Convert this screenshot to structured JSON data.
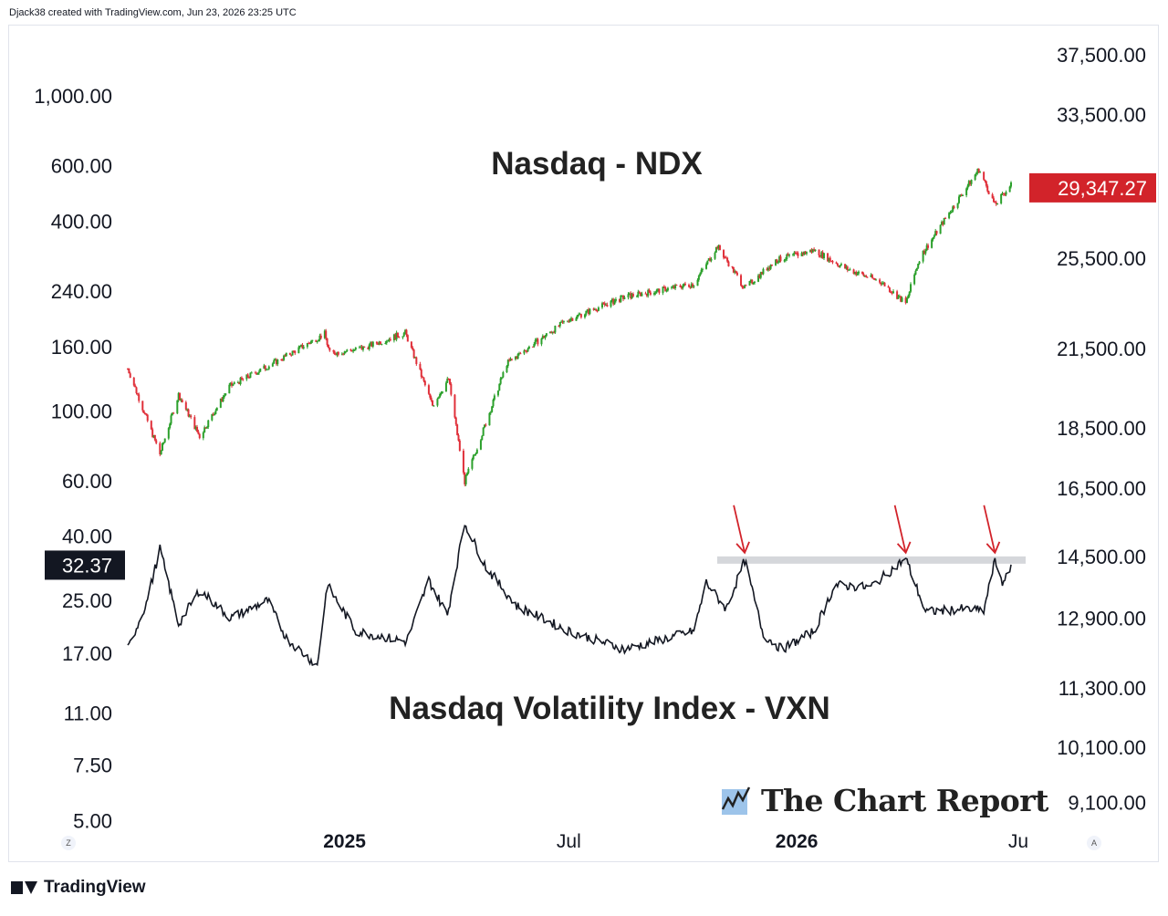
{
  "header": {
    "created_text": "Djack38 created with TradingView.com, Jun 23, 2026 23:25 UTC"
  },
  "footer": {
    "logo_text": "TradingView"
  },
  "watermark": {
    "text": "The Chart Report"
  },
  "controls": {
    "left_scale_button": "Z",
    "right_scale_button": "A"
  },
  "colors": {
    "up": "#2ca02c",
    "down": "#e0303a",
    "vxn_line": "#131722",
    "price_badge": "#d2232a",
    "resistance": "#d5d7db",
    "arrows": "#d2232a"
  },
  "chart_data": [
    {
      "type": "candlestick",
      "title": "Nasdaq - NDX",
      "axis": "right",
      "log_scale": true,
      "ylim": [
        8600,
        39500
      ],
      "y_ticks": [
        "37,500.00",
        "33,500.00",
        "25,500.00",
        "21,500.00",
        "18,500.00",
        "16,500.00",
        "14,500.00",
        "12,900.00",
        "11,300.00",
        "10,100.00",
        "9,100.00"
      ],
      "last_value_label": "29,347.27",
      "x_ticks": [
        "2025",
        "Jul",
        "2026",
        "Ju"
      ],
      "approx_path": [
        {
          "date": "2024-07-10",
          "close": 20700
        },
        {
          "date": "2024-08-05",
          "close": 17600
        },
        {
          "date": "2024-08-20",
          "close": 19700
        },
        {
          "date": "2024-09-06",
          "close": 18200
        },
        {
          "date": "2024-09-30",
          "close": 20000
        },
        {
          "date": "2024-11-08",
          "close": 21000
        },
        {
          "date": "2024-12-16",
          "close": 22100
        },
        {
          "date": "2024-12-20",
          "close": 21300
        },
        {
          "date": "2025-01-15",
          "close": 21500
        },
        {
          "date": "2025-02-19",
          "close": 22150
        },
        {
          "date": "2025-03-13",
          "close": 19300
        },
        {
          "date": "2025-03-26",
          "close": 20300
        },
        {
          "date": "2025-04-08",
          "close": 16700
        },
        {
          "date": "2025-04-22",
          "close": 18300
        },
        {
          "date": "2025-05-12",
          "close": 20900
        },
        {
          "date": "2025-06-30",
          "close": 22700
        },
        {
          "date": "2025-08-15",
          "close": 23700
        },
        {
          "date": "2025-10-10",
          "close": 24300
        },
        {
          "date": "2025-10-29",
          "close": 26100
        },
        {
          "date": "2025-11-20",
          "close": 24100
        },
        {
          "date": "2025-12-15",
          "close": 25400
        },
        {
          "date": "2026-01-15",
          "close": 25900
        },
        {
          "date": "2026-02-10",
          "close": 25000
        },
        {
          "date": "2026-03-10",
          "close": 24400
        },
        {
          "date": "2026-03-30",
          "close": 23400
        },
        {
          "date": "2026-04-10",
          "close": 25500
        },
        {
          "date": "2026-05-01",
          "close": 27500
        },
        {
          "date": "2026-05-28",
          "close": 30200
        },
        {
          "date": "2026-06-10",
          "close": 28200
        },
        {
          "date": "2026-06-23",
          "close": 29347.27
        }
      ]
    },
    {
      "type": "line",
      "title": "Nasdaq Volatility Index - VXN",
      "axis": "left",
      "log_scale": true,
      "ylim": [
        4.6,
        1650
      ],
      "y_ticks": [
        "1,000.00",
        "600.00",
        "400.00",
        "240.00",
        "160.00",
        "100.00",
        "60.00",
        "40.00",
        "25.00",
        "17.00",
        "11.00",
        "7.50",
        "5.00"
      ],
      "last_value_label": "32.37",
      "resistance_level": 33.6,
      "highlighted_peaks": [
        "2025-11-20",
        "2026-03-30",
        "2026-06-10"
      ],
      "approx_path": [
        {
          "date": "2024-07-10",
          "value": 17.5
        },
        {
          "date": "2024-07-25",
          "value": 24.5
        },
        {
          "date": "2024-08-05",
          "value": 36.5
        },
        {
          "date": "2024-08-20",
          "value": 21
        },
        {
          "date": "2024-09-06",
          "value": 27
        },
        {
          "date": "2024-10-01",
          "value": 22
        },
        {
          "date": "2024-10-31",
          "value": 25
        },
        {
          "date": "2024-11-15",
          "value": 19
        },
        {
          "date": "2024-12-10",
          "value": 15.5
        },
        {
          "date": "2024-12-18",
          "value": 28
        },
        {
          "date": "2025-01-10",
          "value": 20
        },
        {
          "date": "2025-02-20",
          "value": 18.5
        },
        {
          "date": "2025-03-10",
          "value": 29
        },
        {
          "date": "2025-03-25",
          "value": 22.5
        },
        {
          "date": "2025-04-08",
          "value": 44
        },
        {
          "date": "2025-04-25",
          "value": 32
        },
        {
          "date": "2025-05-20",
          "value": 24
        },
        {
          "date": "2025-07-01",
          "value": 20
        },
        {
          "date": "2025-08-15",
          "value": 17.5
        },
        {
          "date": "2025-10-10",
          "value": 20
        },
        {
          "date": "2025-10-20",
          "value": 28.5
        },
        {
          "date": "2025-11-05",
          "value": 23.5
        },
        {
          "date": "2025-11-20",
          "value": 33.5
        },
        {
          "date": "2025-12-05",
          "value": 19.5
        },
        {
          "date": "2025-12-20",
          "value": 17.5
        },
        {
          "date": "2026-01-15",
          "value": 20
        },
        {
          "date": "2026-02-01",
          "value": 28
        },
        {
          "date": "2026-03-01",
          "value": 27.5
        },
        {
          "date": "2026-03-30",
          "value": 34
        },
        {
          "date": "2026-04-15",
          "value": 23
        },
        {
          "date": "2026-05-15",
          "value": 23.5
        },
        {
          "date": "2026-06-01",
          "value": 23.2
        },
        {
          "date": "2026-06-10",
          "value": 33.5
        },
        {
          "date": "2026-06-17",
          "value": 28
        },
        {
          "date": "2026-06-23",
          "value": 32.37
        }
      ]
    }
  ]
}
